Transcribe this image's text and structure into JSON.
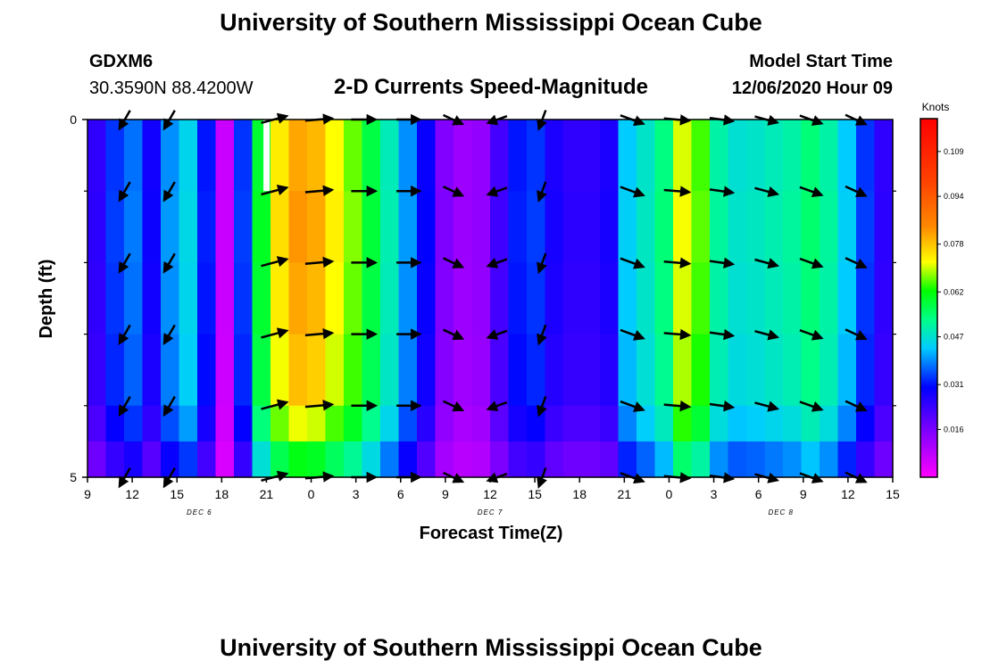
{
  "header": {
    "title": "University of Southern Mississippi Ocean Cube",
    "station_id": "GDXM6",
    "location": "30.3590N 88.4200W",
    "model_start_label": "Model Start Time",
    "model_start_value": "12/06/2020 Hour 09",
    "footer_title": "University of Southern Mississippi Ocean Cube"
  },
  "chart_data": {
    "type": "heatmap",
    "title": "2-D Currents Speed-Magnitude",
    "xlabel": "Forecast Time(Z)",
    "ylabel": "Depth (ft)",
    "x_unit": "hours from 09Z Dec 6",
    "xlim": [
      0,
      54
    ],
    "x_ticks": [
      {
        "h": 0,
        "label": "9"
      },
      {
        "h": 3,
        "label": "12"
      },
      {
        "h": 6,
        "label": "15"
      },
      {
        "h": 9,
        "label": "18"
      },
      {
        "h": 12,
        "label": "21"
      },
      {
        "h": 15,
        "label": "0"
      },
      {
        "h": 18,
        "label": "3"
      },
      {
        "h": 21,
        "label": "6"
      },
      {
        "h": 24,
        "label": "9"
      },
      {
        "h": 27,
        "label": "12"
      },
      {
        "h": 30,
        "label": "15"
      },
      {
        "h": 33,
        "label": "18"
      },
      {
        "h": 36,
        "label": "21"
      },
      {
        "h": 39,
        "label": "0"
      },
      {
        "h": 42,
        "label": "3"
      },
      {
        "h": 45,
        "label": "6"
      },
      {
        "h": 48,
        "label": "9"
      },
      {
        "h": 51,
        "label": "12"
      },
      {
        "h": 54,
        "label": "15"
      }
    ],
    "date_labels": [
      {
        "h": 7.5,
        "label": "DEC 6"
      },
      {
        "h": 27,
        "label": "DEC 7"
      },
      {
        "h": 46.5,
        "label": "DEC 8"
      }
    ],
    "ylim": [
      0,
      5
    ],
    "y_tick_labels": [
      {
        "d": 0,
        "label": "0"
      },
      {
        "d": 5,
        "label": "5"
      }
    ],
    "y_minor_ticks": [
      1,
      2,
      3,
      4
    ],
    "depth_levels": [
      0,
      1,
      2,
      3,
      4,
      4.5
    ],
    "colorbar": {
      "units": "Knots",
      "min": 0,
      "max": 0.12,
      "ticks": [
        0.016,
        0.031,
        0.047,
        0.062,
        0.078,
        0.094,
        0.109
      ],
      "tick_labels": [
        "0.016",
        "0.031",
        "0.047",
        "0.062",
        "0.078",
        "0.094",
        "0.109"
      ],
      "colors": [
        "#ff00ff",
        "#8800ff",
        "#0000ff",
        "#00ccff",
        "#00ff88",
        "#00ff00",
        "#ffff00",
        "#ff8800",
        "#ff4400",
        "#ff0000"
      ]
    },
    "column_speeds_knots": [
      0.022,
      0.03,
      0.034,
      0.025,
      0.036,
      0.042,
      0.028,
      0.006,
      0.03,
      0.062,
      0.082,
      0.09,
      0.088,
      0.08,
      0.072,
      0.06,
      0.048,
      0.036,
      0.026,
      0.014,
      0.011,
      0.012,
      0.02,
      0.028,
      0.03,
      0.024,
      0.022,
      0.022,
      0.024,
      0.04,
      0.046,
      0.054,
      0.078,
      0.07,
      0.05,
      0.045,
      0.046,
      0.048,
      0.05,
      0.055,
      0.05,
      0.04,
      0.03,
      0.022
    ],
    "depth_speed_factors": [
      1.0,
      1.02,
      1.0,
      0.97,
      0.88,
      0.72
    ],
    "arrow_levels_ft": [
      0,
      1,
      2,
      3,
      4,
      5
    ],
    "arrows": [
      {
        "h": 2.5,
        "angle_deg": 240,
        "speed": 0.03
      },
      {
        "h": 5.5,
        "angle_deg": 240,
        "speed": 0.03
      },
      {
        "h": 12.5,
        "angle_deg": 15,
        "speed": 0.08
      },
      {
        "h": 15.5,
        "angle_deg": 5,
        "speed": 0.085
      },
      {
        "h": 18.5,
        "angle_deg": 0,
        "speed": 0.06
      },
      {
        "h": 21.5,
        "angle_deg": 0,
        "speed": 0.05
      },
      {
        "h": 24.5,
        "angle_deg": 335,
        "speed": 0.03
      },
      {
        "h": 27.5,
        "angle_deg": 200,
        "speed": 0.02
      },
      {
        "h": 30.5,
        "angle_deg": 250,
        "speed": 0.02
      },
      {
        "h": 36.5,
        "angle_deg": 340,
        "speed": 0.06
      },
      {
        "h": 39.5,
        "angle_deg": 355,
        "speed": 0.07
      },
      {
        "h": 42.5,
        "angle_deg": 352,
        "speed": 0.05
      },
      {
        "h": 45.5,
        "angle_deg": 345,
        "speed": 0.05
      },
      {
        "h": 48.5,
        "angle_deg": 340,
        "speed": 0.05
      },
      {
        "h": 51.5,
        "angle_deg": 335,
        "speed": 0.04
      }
    ]
  }
}
